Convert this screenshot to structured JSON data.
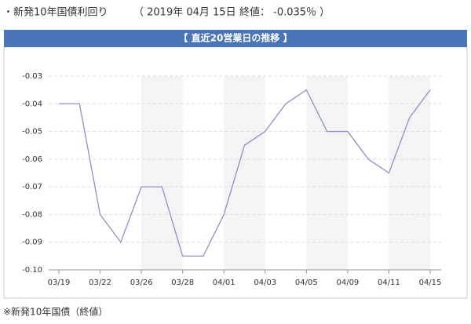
{
  "header": {
    "title": "・新発10年国債利回り",
    "date": "（ 2019年 04月 15日",
    "close": "終値： -0.035％ ）"
  },
  "chart_data": {
    "type": "line",
    "title": "【 直近20営業日の推移 】",
    "categories": [
      "03/19",
      null,
      "03/22",
      null,
      "03/26",
      null,
      "03/28",
      null,
      "04/01",
      null,
      "04/03",
      null,
      "04/05",
      null,
      "04/09",
      null,
      "04/11",
      null,
      "04/15"
    ],
    "series": [
      {
        "color": "#8c90cc",
        "values": [
          -0.04,
          -0.04,
          -0.08,
          -0.09,
          -0.07,
          -0.07,
          -0.095,
          -0.095,
          -0.08,
          -0.055,
          -0.05,
          -0.04,
          -0.035,
          -0.05,
          -0.05,
          -0.06,
          -0.065,
          -0.045,
          -0.035
        ]
      }
    ],
    "ylim": [
      -0.1,
      -0.03
    ],
    "yticks": [
      -0.03,
      -0.04,
      -0.05,
      -0.06,
      -0.07,
      -0.08,
      -0.09,
      {
        "value": -0.1,
        "label": "-0.10"
      }
    ],
    "grid": true
  },
  "footer": "※新発10年国債（終値）"
}
